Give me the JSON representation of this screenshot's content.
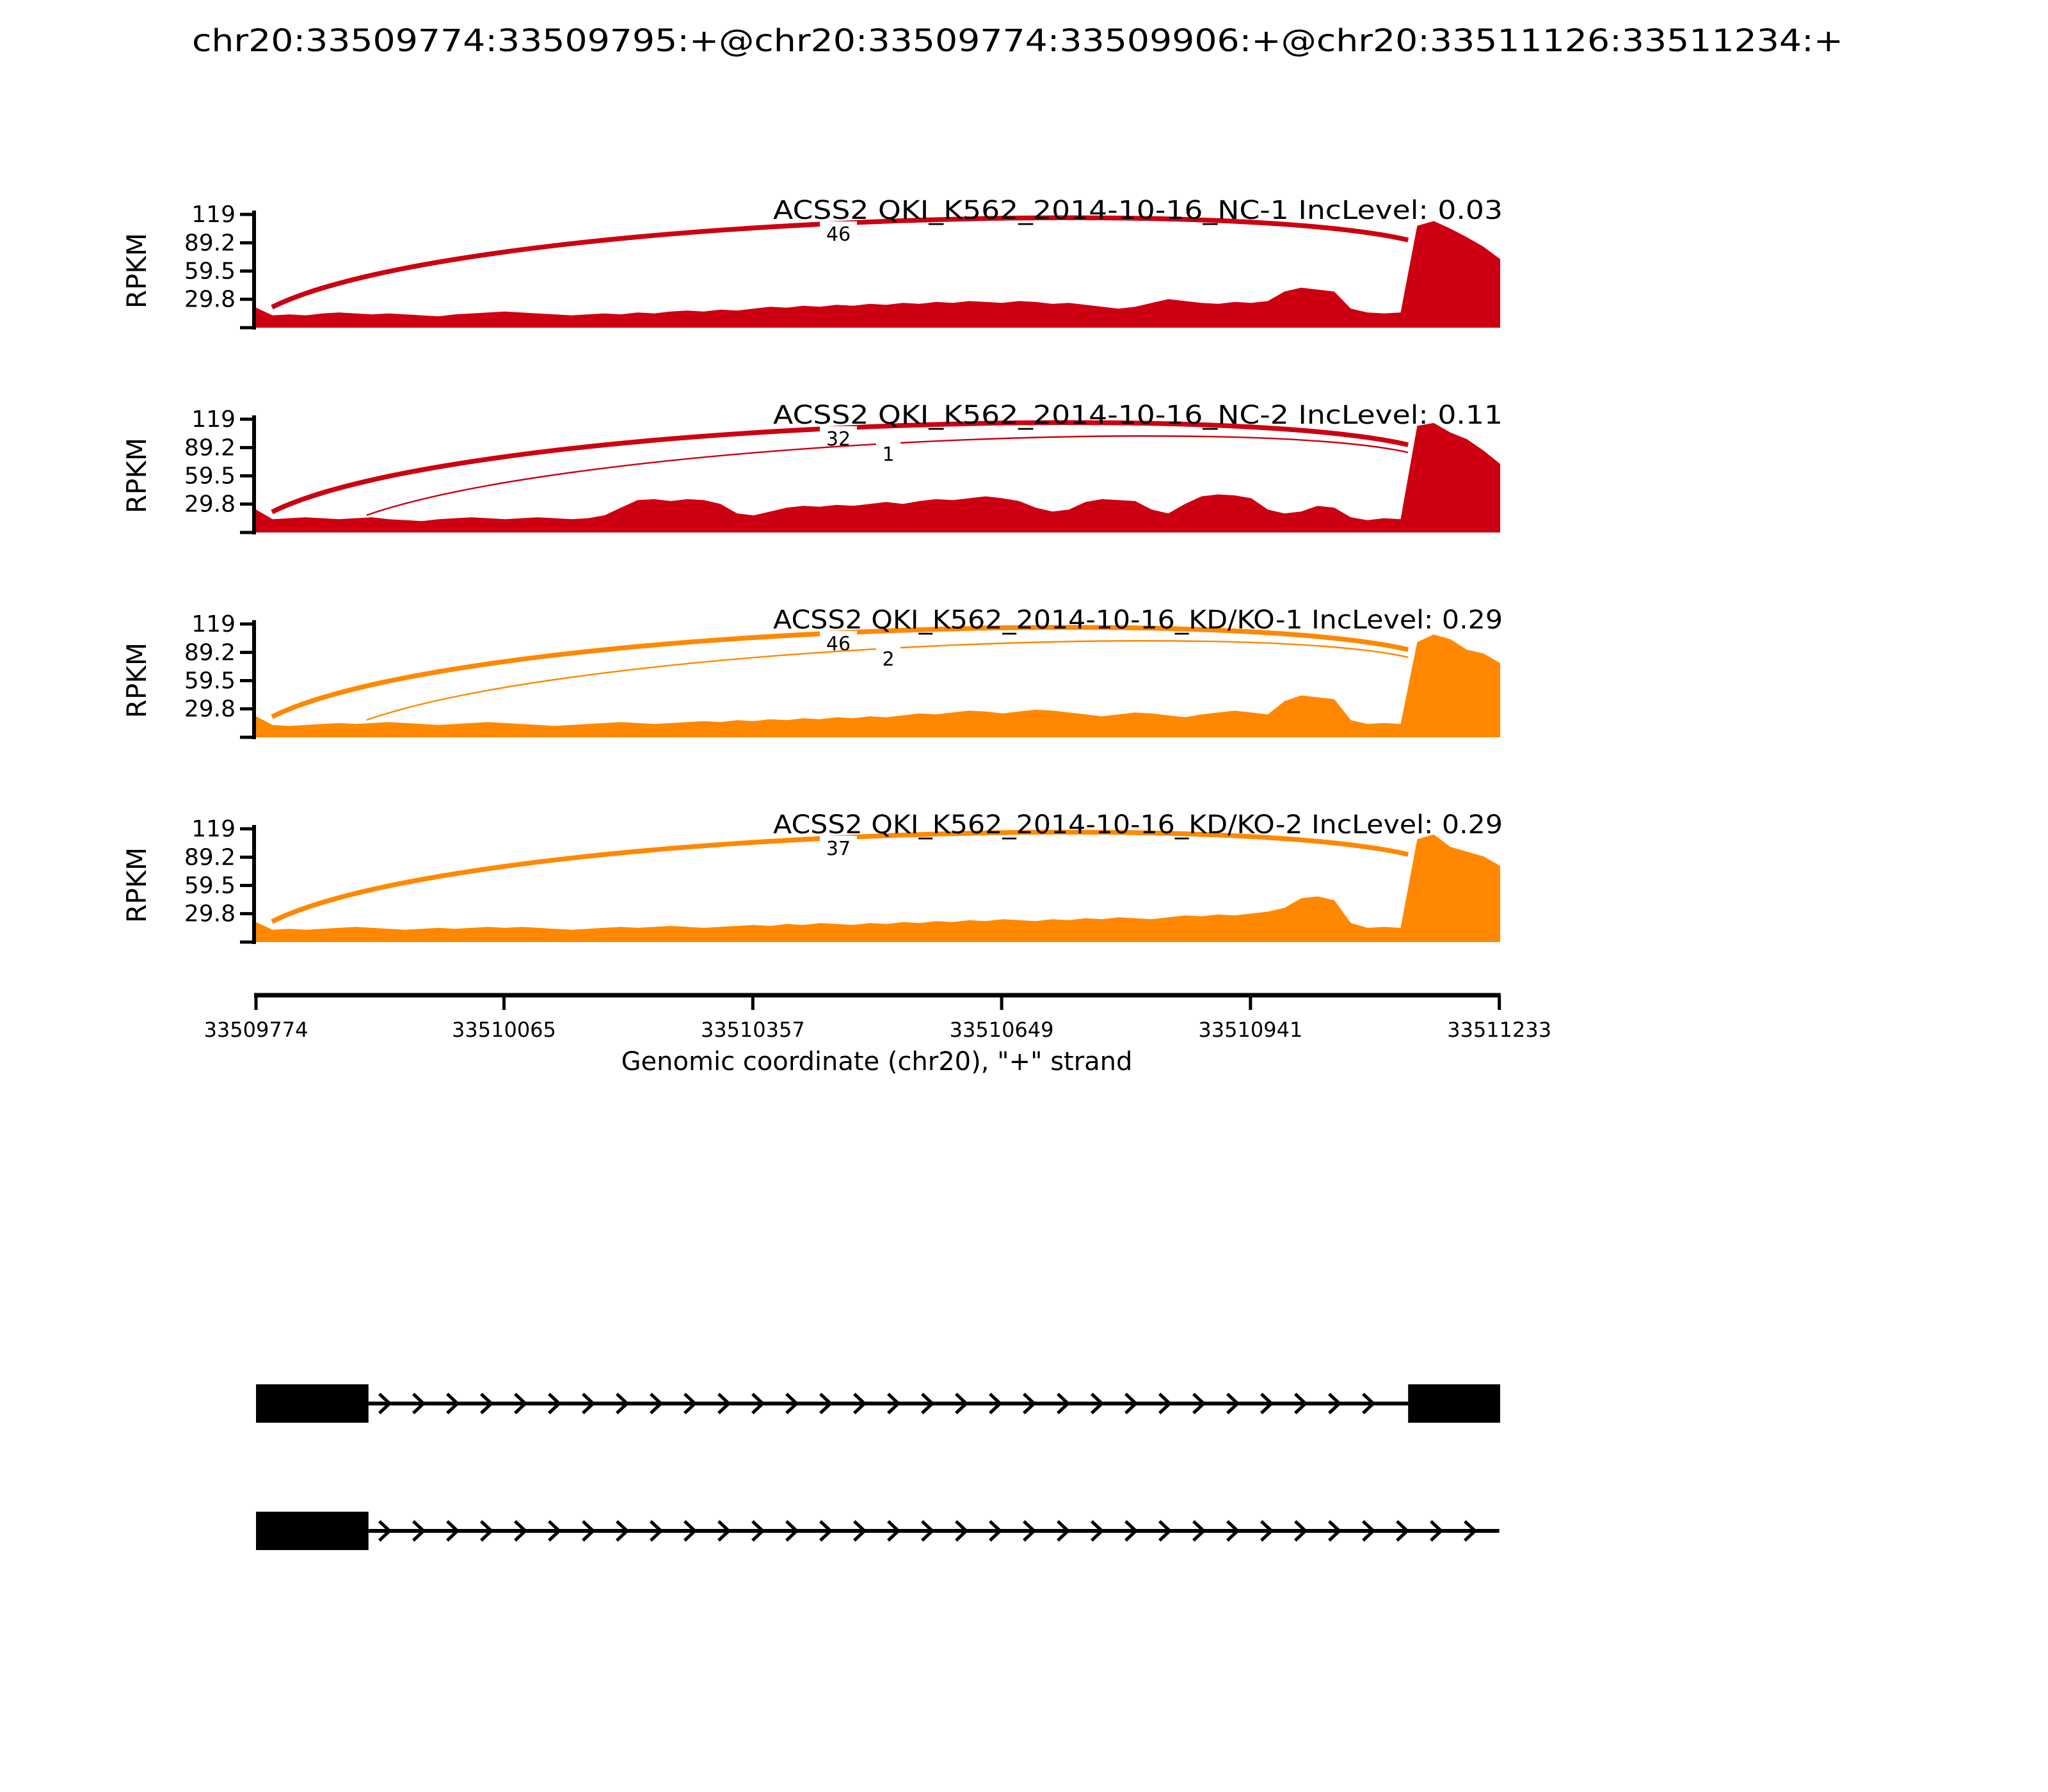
{
  "chart_data": {
    "type": "sashimi",
    "title": "chr20:33509774:33509795:+@chr20:33509774:33509906:+@chr20:33511126:33511234:+",
    "region": {
      "chrom": "chr20",
      "strand": "+",
      "start": 33509774,
      "end": 33511233
    },
    "ylabel": "RPKM",
    "ymax": 119,
    "yticks": [
      119,
      89.2,
      59.5,
      29.8
    ],
    "xaxis": {
      "label": "Genomic coordinate (chr20), \"+\" strand",
      "ticks": [
        33509774,
        33510065,
        33510357,
        33510649,
        33510941,
        33511233
      ]
    },
    "exons": {
      "exon1_short": [
        33509774,
        33509795
      ],
      "exon1_long": [
        33509774,
        33509906
      ],
      "exon2": [
        33511126,
        33511234
      ]
    },
    "tracks": [
      {
        "name": "ACSS2 QKI_K562_2014-10-16_NC-1",
        "inc_level": "0.03",
        "color": "#CC0011",
        "junctions": [
          {
            "count": 46,
            "from": 33509795,
            "to": 33511126
          }
        ],
        "coverage": [
          21,
          13,
          14,
          13,
          15,
          16,
          15,
          14,
          15,
          14,
          13,
          12,
          14,
          15,
          16,
          17,
          16,
          15,
          14,
          13,
          14,
          15,
          14,
          16,
          15,
          17,
          18,
          17,
          19,
          18,
          20,
          22,
          21,
          23,
          22,
          24,
          23,
          25,
          24,
          26,
          25,
          27,
          26,
          28,
          27,
          26,
          28,
          27,
          25,
          26,
          24,
          22,
          20,
          22,
          26,
          30,
          28,
          26,
          25,
          27,
          26,
          28,
          38,
          42,
          40,
          38,
          20,
          16,
          15,
          16,
          107,
          112,
          104,
          95,
          85,
          72
        ]
      },
      {
        "name": "ACSS2 QKI_K562_2014-10-16_NC-2",
        "inc_level": "0.11",
        "color": "#CC0011",
        "junctions": [
          {
            "count": 32,
            "from": 33509795,
            "to": 33511126
          },
          {
            "count": 1,
            "from": 33509906,
            "to": 33511126
          }
        ],
        "coverage": [
          24,
          14,
          15,
          16,
          15,
          14,
          15,
          16,
          14,
          13,
          12,
          14,
          15,
          16,
          15,
          14,
          15,
          16,
          15,
          14,
          15,
          18,
          26,
          34,
          35,
          33,
          35,
          34,
          30,
          20,
          18,
          22,
          26,
          28,
          27,
          29,
          28,
          30,
          32,
          30,
          33,
          35,
          34,
          36,
          38,
          36,
          33,
          26,
          22,
          24,
          32,
          35,
          34,
          33,
          24,
          20,
          30,
          38,
          40,
          39,
          36,
          24,
          20,
          22,
          28,
          26,
          16,
          13,
          15,
          14,
          112,
          115,
          105,
          98,
          86,
          72
        ]
      },
      {
        "name": "ACSS2 QKI_K562_2014-10-16_KD/KO-1",
        "inc_level": "0.29",
        "color": "#FF8800",
        "junctions": [
          {
            "count": 46,
            "from": 33509795,
            "to": 33511126
          },
          {
            "count": 2,
            "from": 33509906,
            "to": 33511126
          }
        ],
        "coverage": [
          22,
          13,
          12,
          13,
          14,
          15,
          14,
          15,
          16,
          15,
          14,
          13,
          14,
          15,
          16,
          15,
          14,
          13,
          12,
          13,
          14,
          15,
          16,
          15,
          14,
          15,
          16,
          17,
          16,
          18,
          17,
          19,
          18,
          20,
          19,
          21,
          20,
          22,
          21,
          23,
          25,
          24,
          26,
          28,
          27,
          25,
          27,
          29,
          28,
          26,
          24,
          22,
          24,
          26,
          25,
          23,
          21,
          24,
          26,
          28,
          26,
          24,
          38,
          44,
          42,
          40,
          18,
          14,
          15,
          14,
          100,
          108,
          103,
          92,
          88,
          78
        ]
      },
      {
        "name": "ACSS2 QKI_K562_2014-10-16_KD/KO-2",
        "inc_level": "0.29",
        "color": "#FF8800",
        "junctions": [
          {
            "count": 37,
            "from": 33509795,
            "to": 33511126
          }
        ],
        "coverage": [
          21,
          13,
          14,
          13,
          14,
          15,
          16,
          15,
          14,
          13,
          14,
          15,
          14,
          15,
          16,
          15,
          16,
          15,
          14,
          13,
          14,
          15,
          16,
          15,
          16,
          17,
          16,
          15,
          16,
          17,
          18,
          17,
          19,
          18,
          20,
          19,
          18,
          20,
          19,
          21,
          20,
          22,
          21,
          23,
          22,
          24,
          23,
          22,
          24,
          23,
          25,
          24,
          26,
          25,
          24,
          26,
          28,
          27,
          29,
          28,
          30,
          32,
          36,
          46,
          48,
          44,
          20,
          15,
          16,
          15,
          108,
          113,
          100,
          95,
          90,
          80
        ]
      }
    ],
    "gene_model": {
      "isoforms": [
        {
          "exons": [
            [
              33509774,
              33509906
            ],
            [
              33511126,
              33511234
            ]
          ],
          "intron_line": [
            33509906,
            33511126
          ]
        },
        {
          "exons": [
            [
              33509774,
              33509906
            ]
          ],
          "intron_line": [
            33509906,
            33511233
          ]
        }
      ]
    }
  }
}
